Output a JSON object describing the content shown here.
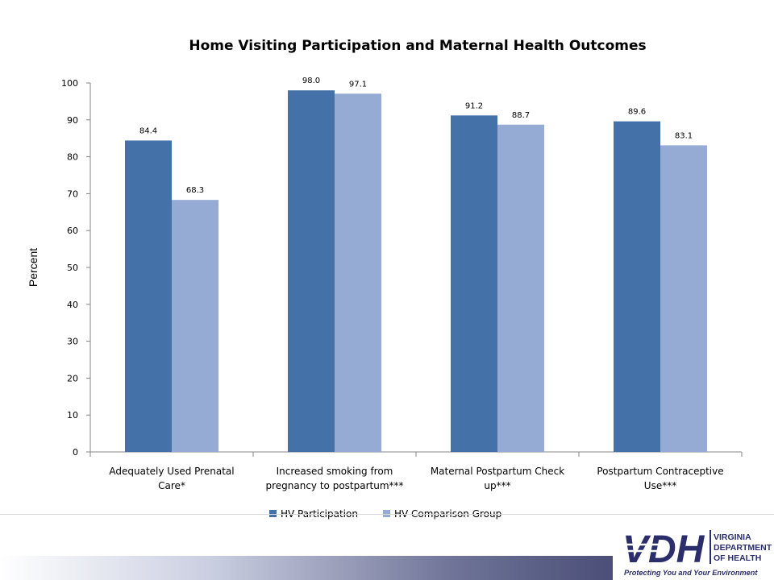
{
  "chart_data": {
    "type": "bar",
    "title": "Home Visiting Participation and Maternal Health Outcomes",
    "ylabel": "Percent",
    "xlabel": "",
    "ylim": [
      0,
      100
    ],
    "yticks": [
      0,
      10,
      20,
      30,
      40,
      50,
      60,
      70,
      80,
      90,
      100
    ],
    "categories": [
      [
        "Adequately Used Prenatal",
        "Care*"
      ],
      [
        "Increased smoking from",
        "pregnancy to postpartum***"
      ],
      [
        "Maternal Postpartum Check",
        "up***"
      ],
      [
        "Postpartum Contraceptive",
        "Use***"
      ]
    ],
    "series": [
      {
        "name": "HV Participation",
        "values": [
          84.4,
          98.0,
          91.2,
          89.6
        ],
        "labels": [
          "84.4",
          "98.0",
          "91.2",
          "89.6"
        ],
        "color": "#4472a8"
      },
      {
        "name": "HV Comparison Group",
        "values": [
          68.3,
          97.1,
          88.7,
          83.1
        ],
        "labels": [
          "68.3",
          "97.1",
          "88.7",
          "83.1"
        ],
        "color": "#95abd3"
      }
    ],
    "grid": false,
    "legend": "bottom"
  },
  "logo": {
    "mark": "VDH",
    "org_lines": [
      "VIRGINIA",
      "DEPARTMENT",
      "OF HEALTH"
    ],
    "tagline": "Protecting You and Your Environment",
    "color": "#2b2e6b"
  }
}
